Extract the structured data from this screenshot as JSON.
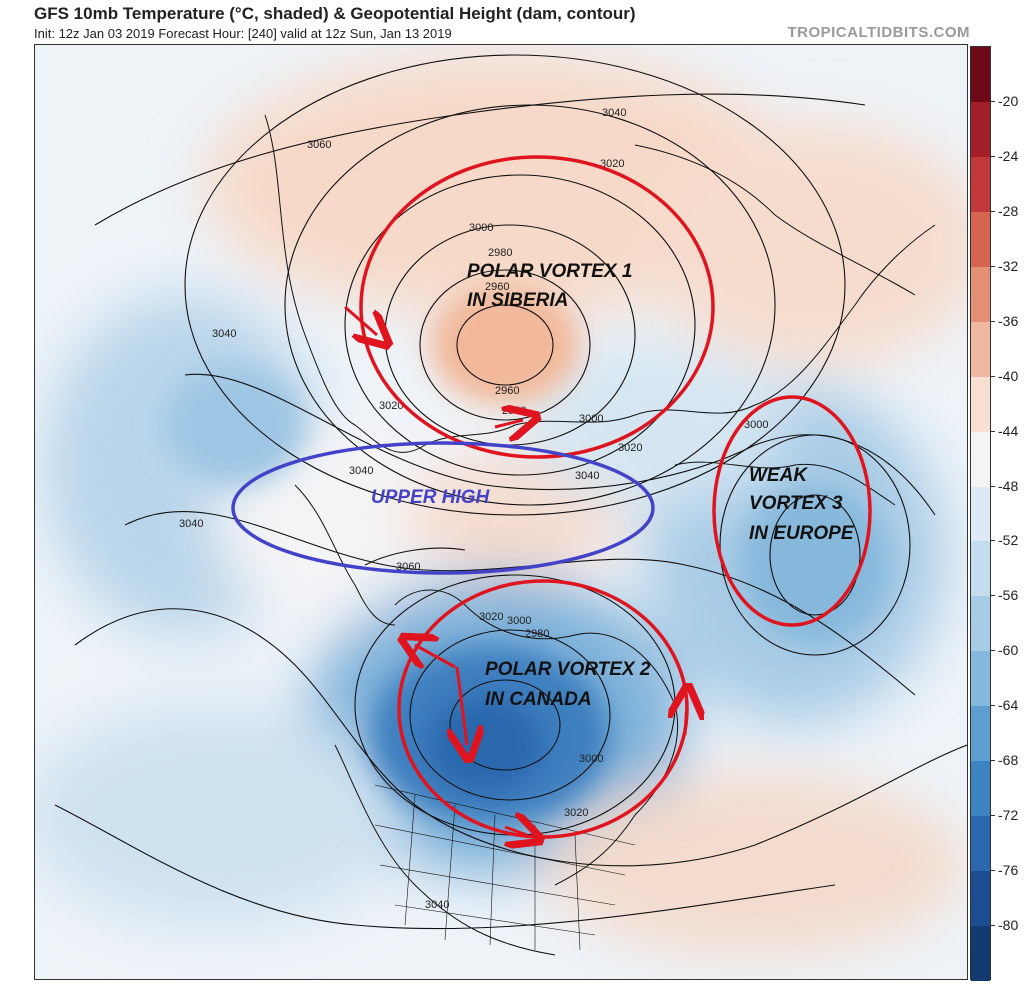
{
  "header": {
    "title": "GFS 10mb Temperature (°C, shaded) & Geopotential Height (dam, contour)",
    "subtitle": "Init: 12z Jan 03 2019   Forecast Hour: [240]   valid at 12z Sun, Jan 13 2019",
    "credit": "TROPICALTIDBITS.COM"
  },
  "colorbar": {
    "labels": [
      "-20",
      "-24",
      "-28",
      "-32",
      "-36",
      "-40",
      "-44",
      "-48",
      "-52",
      "-56",
      "-60",
      "-64",
      "-68",
      "-72",
      "-76",
      "-80"
    ],
    "colors": [
      "#6e0a18",
      "#a21e28",
      "#c2393a",
      "#d6654f",
      "#e49075",
      "#f0b8a0",
      "#f7dfd2",
      "#f4f4f6",
      "#dde9f4",
      "#c3dcee",
      "#a7cde6",
      "#85b9dc",
      "#5f9fd0",
      "#3f84c2",
      "#2a67ae",
      "#1b4d90",
      "#103a70"
    ]
  },
  "contour_labels": [
    "3060",
    "3040",
    "3020",
    "3000",
    "2980",
    "2960",
    "2960",
    "2980",
    "3040",
    "3040",
    "3020",
    "3000",
    "3040",
    "3060",
    "3040",
    "3020",
    "3000",
    "2980",
    "3000",
    "3020",
    "3040",
    "3000",
    "3020"
  ],
  "annotations": {
    "pv1_line1": "POLAR VORTEX 1",
    "pv1_line2": "IN SIBERIA",
    "upper_high": "UPPER HIGH",
    "pv3_line1": "WEAK",
    "pv3_line2": "VORTEX 3",
    "pv3_line3": "IN EUROPE",
    "pv2_line1": "POLAR VORTEX 2",
    "pv2_line2": "IN CANADA"
  },
  "colors": {
    "vortex_circle": "#e0141e",
    "high_circle": "#4343c9",
    "upper_high_text": "#4343c9",
    "vortex_text": "#111111"
  }
}
